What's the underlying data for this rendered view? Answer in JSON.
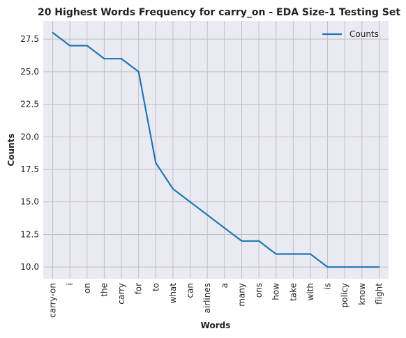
{
  "chart_data": {
    "type": "line",
    "title": "20 Highest Words Frequency for carry_on - EDA Size-1 Testing Set",
    "xlabel": "Words",
    "ylabel": "Counts",
    "categories": [
      "carry-on",
      "i",
      "on",
      "the",
      "carry",
      "for",
      "to",
      "what",
      "can",
      "airlines",
      "a",
      "many",
      "ons",
      "how",
      "take",
      "with",
      "is",
      "policy",
      "know",
      "flight"
    ],
    "series": [
      {
        "name": "Counts",
        "values": [
          28,
          27,
          27,
          26,
          26,
          25,
          18,
          16,
          15,
          14,
          13,
          12,
          12,
          11,
          11,
          11,
          10,
          10,
          10,
          10
        ],
        "color": "#1f77b4"
      }
    ],
    "ylim": [
      9.1,
      28.9
    ],
    "yticks": [
      10.0,
      12.5,
      15.0,
      17.5,
      20.0,
      22.5,
      25.0,
      27.5
    ],
    "ytick_labels": [
      "10.0",
      "12.5",
      "15.0",
      "17.5",
      "20.0",
      "22.5",
      "25.0",
      "27.5"
    ],
    "grid": true,
    "legend_position": "top-right",
    "background": "#eaeaf2",
    "grid_color": "#c0c0c0"
  }
}
